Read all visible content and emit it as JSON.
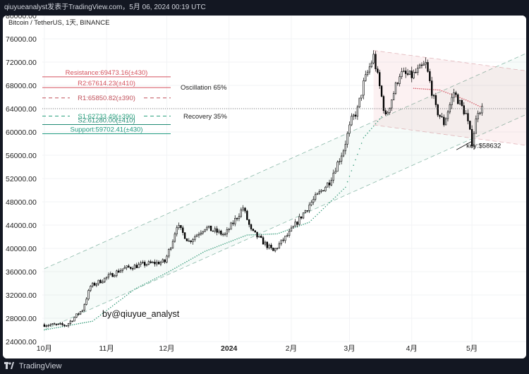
{
  "header": {
    "caption": "qiuyueanalyst发表于TradingView.com，5月 06, 2024 00:19 UTC"
  },
  "footer": {
    "brand": "TradingView",
    "logo_icon": "tradingview-logo-icon"
  },
  "chart_data": {
    "type": "candlestick",
    "title": "Bitcoin / TetherUS, 1天, BINANCE",
    "watermark": "by@qiuyue_analyst",
    "y_ticks": [
      "80000.00",
      "76000.00",
      "72000.00",
      "68000.00",
      "64000.00",
      "60000.00",
      "56000.00",
      "52000.00",
      "48000.00",
      "44000.00",
      "40000.00",
      "36000.00",
      "32000.00",
      "28000.00",
      "24000.00"
    ],
    "ylim": [
      24000,
      80000
    ],
    "x_ticks": [
      {
        "label": "10月",
        "date": "2023-10-01",
        "bold": false
      },
      {
        "label": "11月",
        "date": "2023-11-01",
        "bold": false
      },
      {
        "label": "12月",
        "date": "2023-12-01",
        "bold": false
      },
      {
        "label": "2024",
        "date": "2024-01-01",
        "bold": true
      },
      {
        "label": "2月",
        "date": "2024-02-01",
        "bold": false
      },
      {
        "label": "3月",
        "date": "2024-03-01",
        "bold": false
      },
      {
        "label": "4月",
        "date": "2024-04-01",
        "bold": false
      },
      {
        "label": "5月",
        "date": "2024-05-01",
        "bold": false
      }
    ],
    "xlim": [
      "2023-09-30",
      "2024-05-28"
    ],
    "current_price": 64000,
    "levels": [
      {
        "label": "Resistance:69473.16(±430)",
        "value": 69473.16,
        "color": "#d4525d",
        "dash": false
      },
      {
        "label": "R2:67614.23(±410)",
        "value": 67614.23,
        "color": "#d4525d",
        "dash": false
      },
      {
        "label": "R1:65850.82(±390)",
        "value": 65850.82,
        "color": "#c0505a",
        "dash": true
      },
      {
        "label": "S1:62733.49(±390)",
        "value": 62733.49,
        "color": "#2aa07e",
        "dash": true
      },
      {
        "label": "S2:61280.00(±410)",
        "value": 61280.0,
        "color": "#1f8a73",
        "dash": false
      },
      {
        "label": "Support:59702.41(±430)",
        "value": 59702.41,
        "color": "#1f9a80",
        "dash": false
      }
    ],
    "annotations": {
      "oscillation": "Oscillation 65%",
      "recovery": "Recovery 35%",
      "key": "key:$58632",
      "key_value": 58632,
      "key_date": "2024-05-01"
    },
    "anchors": [
      [
        "2023-10-01",
        26900
      ],
      [
        "2023-10-12",
        26800
      ],
      [
        "2023-10-20",
        29500
      ],
      [
        "2023-10-24",
        33500
      ],
      [
        "2023-10-30",
        34600
      ],
      [
        "2023-11-09",
        36500
      ],
      [
        "2023-11-20",
        37300
      ],
      [
        "2023-11-30",
        37700
      ],
      [
        "2023-12-04",
        41500
      ],
      [
        "2023-12-06",
        44000
      ],
      [
        "2023-12-12",
        41200
      ],
      [
        "2023-12-20",
        43600
      ],
      [
        "2023-12-30",
        42300
      ],
      [
        "2024-01-08",
        47000
      ],
      [
        "2024-01-12",
        43000
      ],
      [
        "2024-01-23",
        39500
      ],
      [
        "2024-01-31",
        42600
      ],
      [
        "2024-02-10",
        47500
      ],
      [
        "2024-02-20",
        51500
      ],
      [
        "2024-02-27",
        57000
      ],
      [
        "2024-03-02",
        62000
      ],
      [
        "2024-03-05",
        63800
      ],
      [
        "2024-03-08",
        68300
      ],
      [
        "2024-03-13",
        73000
      ],
      [
        "2024-03-19",
        62500
      ],
      [
        "2024-03-26",
        70000
      ],
      [
        "2024-04-01",
        69600
      ],
      [
        "2024-04-08",
        71600
      ],
      [
        "2024-04-13",
        64000
      ],
      [
        "2024-04-17",
        61500
      ],
      [
        "2024-04-22",
        66800
      ],
      [
        "2024-04-28",
        63000
      ],
      [
        "2024-05-01",
        58200
      ],
      [
        "2024-05-04",
        63800
      ],
      [
        "2024-05-06",
        64000
      ]
    ],
    "trail_points": [
      [
        "2023-10-01",
        26000
      ],
      [
        "2023-10-25",
        27500
      ],
      [
        "2023-11-15",
        33000
      ],
      [
        "2023-12-01",
        35800
      ],
      [
        "2023-12-20",
        39500
      ],
      [
        "2024-01-10",
        42300
      ],
      [
        "2024-01-25",
        42500
      ],
      [
        "2024-02-10",
        44500
      ],
      [
        "2024-02-28",
        50500
      ],
      [
        "2024-03-08",
        59000
      ],
      [
        "2024-03-18",
        63000
      ]
    ],
    "trail_red": [
      [
        "2024-04-02",
        67500
      ],
      [
        "2024-04-15",
        67200
      ],
      [
        "2024-04-28",
        65500
      ],
      [
        "2024-05-06",
        64200
      ]
    ],
    "channels": [
      {
        "name": "",
        "color": "#5b9c86",
        "fill": "rgba(82,170,140,0.05)",
        "p1": [
          "2023-10-01",
          36500
        ],
        "p2": [
          "2024-05-28",
          73500
        ],
        "width": 10500
      },
      {
        "name": "",
        "color": "#d69aa0",
        "fill": "rgba(225,120,130,0.10)",
        "p1": [
          "2024-03-13",
          74000
        ],
        "p2": [
          "2024-05-28",
          70500
        ],
        "width": 12800
      }
    ]
  }
}
